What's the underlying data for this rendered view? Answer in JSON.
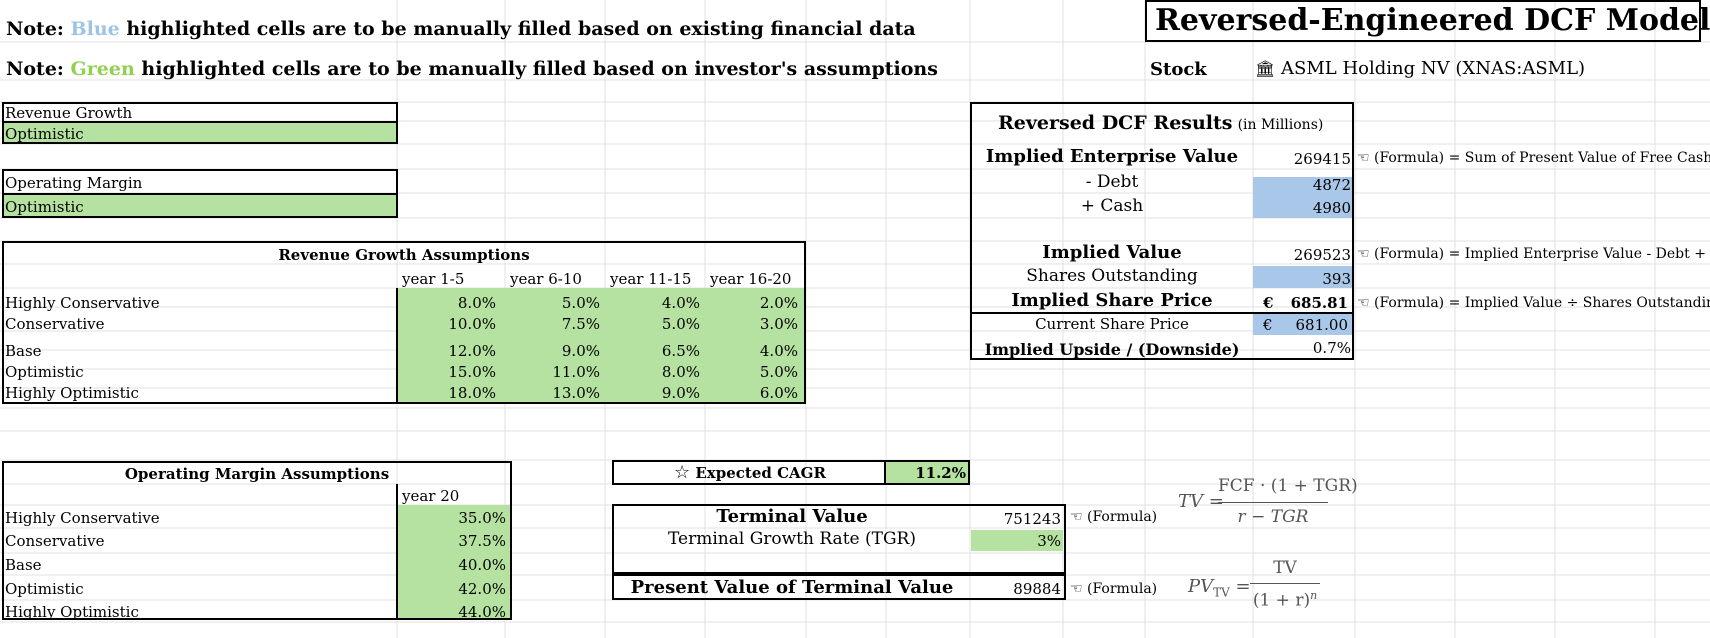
{
  "notes": {
    "note1_prefix": "Note:",
    "note1_color_word": "Blue",
    "note1_suffix": "highlighted cells are to be manually filled based on existing financial data",
    "note2_prefix": "Note:",
    "note2_color_word": "Green",
    "note2_suffix": "highlighted cells are to be manually filled based on investor's assumptions"
  },
  "header": {
    "title": "Reversed-Engineered DCF Model",
    "stock_label": "Stock",
    "stock_value": "ASML Holding NV (XNAS:ASML)",
    "stock_icon": "bank-icon"
  },
  "selectors": {
    "revenue_label": "Revenue Growth",
    "revenue_value": "Optimistic",
    "margin_label": "Operating Margin",
    "margin_value": "Optimistic"
  },
  "revenue_assumptions": {
    "title": "Revenue Growth Assumptions",
    "columns": [
      "year 1-5",
      "year 6-10",
      "year 11-15",
      "year 16-20"
    ],
    "rows": [
      {
        "name": "Highly Conservative",
        "values": [
          "8.0%",
          "5.0%",
          "4.0%",
          "2.0%"
        ]
      },
      {
        "name": "Conservative",
        "values": [
          "10.0%",
          "7.5%",
          "5.0%",
          "3.0%"
        ]
      },
      {
        "name": "Base",
        "values": [
          "12.0%",
          "9.0%",
          "6.5%",
          "4.0%"
        ]
      },
      {
        "name": "Optimistic",
        "values": [
          "15.0%",
          "11.0%",
          "8.0%",
          "5.0%"
        ]
      },
      {
        "name": "Highly Optimistic",
        "values": [
          "18.0%",
          "13.0%",
          "9.0%",
          "6.0%"
        ]
      }
    ]
  },
  "margin_assumptions": {
    "title": "Operating Margin Assumptions",
    "column": "year 20",
    "rows": [
      {
        "name": "Highly Conservative",
        "value": "35.0%"
      },
      {
        "name": "Conservative",
        "value": "37.5%"
      },
      {
        "name": "Base",
        "value": "40.0%"
      },
      {
        "name": "Optimistic",
        "value": "42.0%"
      },
      {
        "name": "Highly Optimistic",
        "value": "44.0%"
      }
    ]
  },
  "cagr": {
    "label": "Expected CAGR",
    "value": "11.2%",
    "icon": "star-icon"
  },
  "terminal": {
    "tv_label": "Terminal Value",
    "tv_value": "751243",
    "tv_note": "(Formula)",
    "tgr_label": "Terminal Growth Rate (TGR)",
    "tgr_value": "3%",
    "pv_label": "Present Value of Terminal Value",
    "pv_value": "89884",
    "pv_note": "(Formula)"
  },
  "formulas": {
    "tv_lhs": "TV =",
    "tv_num": "FCF · (1 + TGR)",
    "tv_den": "r − TGR",
    "pv_lhs": "PV",
    "pv_sub": "TV",
    "pv_eq": "=",
    "pv_num": "TV",
    "pv_den": "(1 + r)",
    "pv_exp": "n"
  },
  "results": {
    "title": "Reversed DCF Results",
    "title_unit": "(in Millions)",
    "iev_label": "Implied Enterprise Value",
    "iev_value": "269415",
    "iev_note": "(Formula) = Sum of Present Value of Free Cash F",
    "debt_label": "- Debt",
    "debt_value": "4872",
    "cash_label": "+ Cash",
    "cash_value": "4980",
    "iv_label": "Implied Value",
    "iv_value": "269523",
    "iv_note": "(Formula) = Implied Enterprise Value - Debt + Ca",
    "shares_label": "Shares Outstanding",
    "shares_value": "393",
    "isp_label": "Implied Share Price",
    "isp_currency": "€",
    "isp_value": "685.81",
    "isp_note": "(Formula) = Implied Value ÷ Shares Outstanding",
    "csp_label": "Current Share Price",
    "csp_currency": "€",
    "csp_value": "681.00",
    "upside_label": "Implied Upside / (Downside)",
    "upside_value": "0.7%"
  },
  "colors": {
    "blue_note": "#9dc3e6",
    "green_note": "#92d050",
    "green_fill": "#b6e2a1",
    "blue_fill": "#a9c7e8",
    "gridline": "#e0e0e0"
  }
}
